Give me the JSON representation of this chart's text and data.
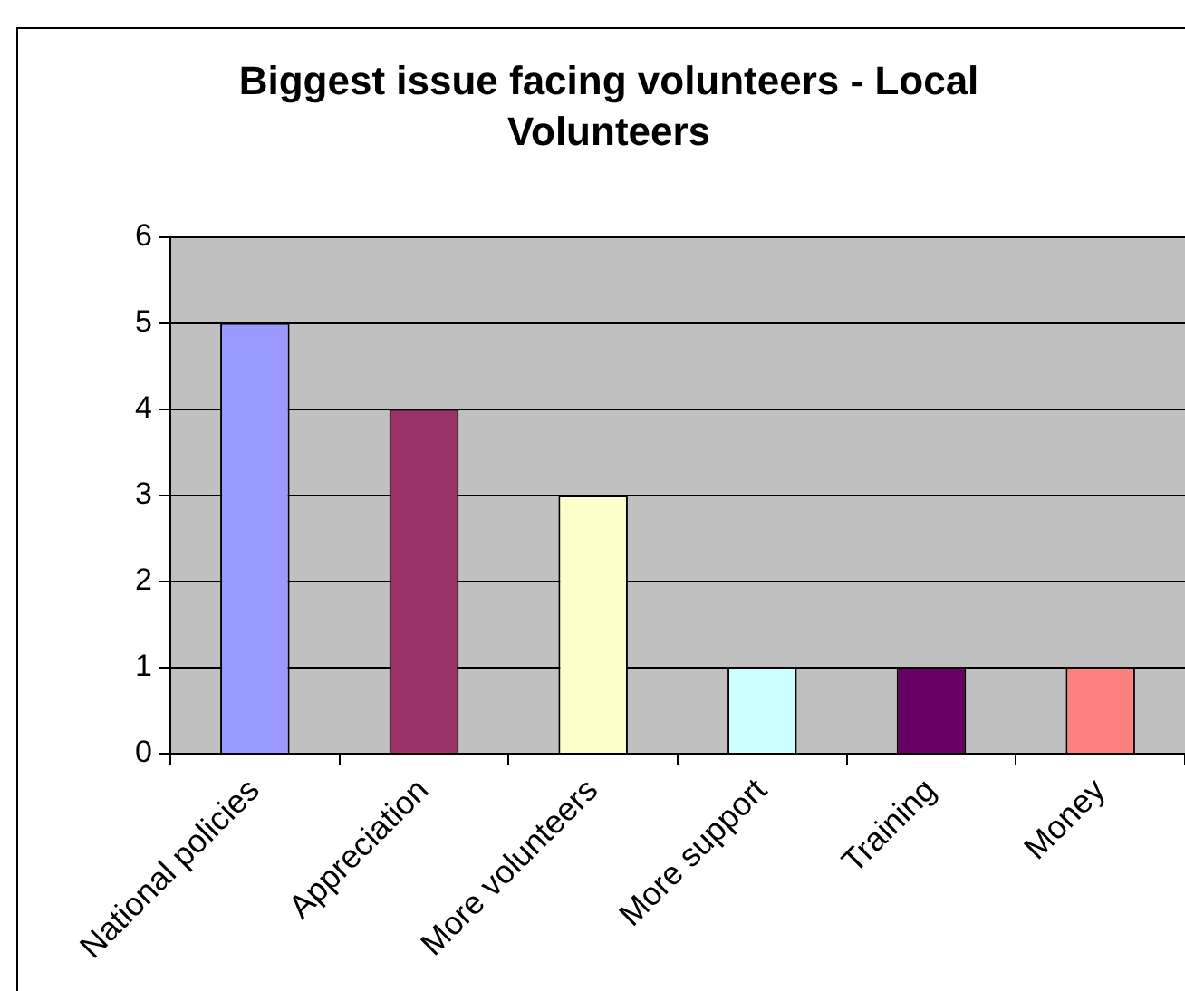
{
  "chart_data": {
    "type": "bar",
    "title": "Biggest issue facing volunteers - Local Volunteers",
    "categories": [
      "National policies",
      "Appreciation",
      "More volunteers",
      "More support",
      "Training",
      "Money"
    ],
    "values": [
      5,
      4,
      3,
      1,
      1,
      1
    ],
    "colors": [
      "#9999ff",
      "#993366",
      "#ffffcc",
      "#ccffff",
      "#660066",
      "#ff8080"
    ],
    "ylim": [
      0,
      6
    ],
    "yticks": [
      0,
      1,
      2,
      3,
      4,
      5,
      6
    ],
    "grid": "y"
  }
}
